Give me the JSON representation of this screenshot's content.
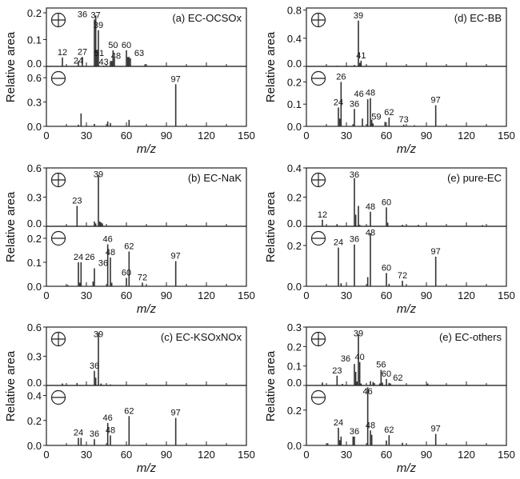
{
  "chart_data": [
    {
      "type": "bar",
      "title": "(a) EC-OCSOx",
      "xlabel": "m/z",
      "ylabel": "Relative area",
      "xlim": [
        0,
        150
      ],
      "xticks": [
        0,
        30,
        60,
        90,
        120,
        150
      ],
      "positive": {
        "sign": "+",
        "ylim": [
          0,
          0.218
        ],
        "yticks": [
          "0.0",
          "0.1",
          "0.2"
        ],
        "peaks": [
          [
            12,
            0.033
          ],
          [
            24,
            0.02
          ],
          [
            27,
            0.035
          ],
          [
            36,
            0.175
          ],
          [
            37,
            0.19
          ],
          [
            38,
            0.06
          ],
          [
            39,
            0.135
          ],
          [
            43,
            0.003
          ],
          [
            48,
            0.02
          ],
          [
            49,
            0.02
          ],
          [
            50,
            0.06
          ],
          [
            51,
            0.03
          ],
          [
            60,
            0.06
          ],
          [
            61,
            0.035
          ],
          [
            62,
            0.035
          ],
          [
            63,
            0.03
          ],
          [
            74,
            0.008
          ]
        ],
        "labels": [
          12,
          24,
          27,
          36,
          37,
          39,
          43,
          48,
          50,
          51,
          60,
          63
        ]
      },
      "negative": {
        "sign": "-",
        "ylim": [
          0,
          0.74
        ],
        "yticks": [
          "0.0",
          "0.3",
          "0.6"
        ],
        "peaks": [
          [
            24,
            0.02
          ],
          [
            26,
            0.16
          ],
          [
            36,
            0.03
          ],
          [
            46,
            0.06
          ],
          [
            48,
            0.04
          ],
          [
            62,
            0.08
          ],
          [
            97,
            0.52
          ]
        ],
        "labels": [
          97
        ]
      }
    },
    {
      "type": "bar",
      "title": "(b) EC-NaK",
      "xlabel": "m/z",
      "ylabel": "Relative area",
      "xlim": [
        0,
        150
      ],
      "xticks": [
        0,
        30,
        60,
        90,
        120,
        150
      ],
      "positive": {
        "sign": "+",
        "ylim": [
          0,
          0.6
        ],
        "yticks": [
          "0.0",
          "0.3",
          "0.6"
        ],
        "peaks": [
          [
            23,
            0.21
          ],
          [
            36,
            0.05
          ],
          [
            37,
            0.03
          ],
          [
            39,
            0.53
          ],
          [
            40,
            0.05
          ],
          [
            41,
            0.04
          ],
          [
            42,
            0.03
          ]
        ],
        "labels": [
          23,
          39
        ]
      },
      "negative": {
        "sign": "-",
        "ylim": [
          0,
          0.25
        ],
        "yticks": [
          "0.0",
          "0.1",
          "0.2"
        ],
        "peaks": [
          [
            16,
            0.005
          ],
          [
            24,
            0.1
          ],
          [
            25,
            0.015
          ],
          [
            26,
            0.1
          ],
          [
            35,
            0.02
          ],
          [
            36,
            0.075
          ],
          [
            46,
            0.175
          ],
          [
            48,
            0.12
          ],
          [
            49,
            0.015
          ],
          [
            60,
            0.035
          ],
          [
            62,
            0.145
          ],
          [
            72,
            0.015
          ],
          [
            97,
            0.105
          ]
        ],
        "labels": [
          24,
          26,
          36,
          46,
          48,
          60,
          62,
          72,
          97
        ]
      }
    },
    {
      "type": "bar",
      "title": "(c) EC-KSOxNOx",
      "xlabel": "m/z",
      "ylabel": "Relative area",
      "xlim": [
        0,
        150
      ],
      "xticks": [
        0,
        30,
        60,
        90,
        120,
        150
      ],
      "positive": {
        "sign": "+",
        "ylim": [
          0,
          0.6
        ],
        "yticks": [
          "0.0",
          "0.3",
          "0.6"
        ],
        "peaks": [
          [
            12,
            0.02
          ],
          [
            23,
            0.025
          ],
          [
            36,
            0.15
          ],
          [
            37,
            0.08
          ],
          [
            39,
            0.54
          ],
          [
            41,
            0.02
          ],
          [
            48,
            0.01
          ]
        ],
        "labels": [
          36,
          39
        ]
      },
      "negative": {
        "sign": "-",
        "ylim": [
          0,
          0.48
        ],
        "yticks": [
          "0.0",
          "0.2",
          "0.4"
        ],
        "peaks": [
          [
            24,
            0.06
          ],
          [
            26,
            0.06
          ],
          [
            36,
            0.05
          ],
          [
            46,
            0.18
          ],
          [
            48,
            0.08
          ],
          [
            62,
            0.235
          ],
          [
            72,
            0.005
          ],
          [
            97,
            0.22
          ]
        ],
        "labels": [
          24,
          36,
          46,
          48,
          62,
          97
        ]
      }
    },
    {
      "type": "bar",
      "title": "(d) EC-BB",
      "xlabel": "m/z",
      "ylabel": "Relative area",
      "xlim": [
        0,
        150
      ],
      "xticks": [
        0,
        30,
        60,
        90,
        120,
        150
      ],
      "positive": {
        "sign": "+",
        "ylim": [
          0,
          0.83
        ],
        "yticks": [
          "0.0",
          "0.4",
          "0.8"
        ],
        "peaks": [
          [
            23,
            0.01
          ],
          [
            36,
            0.02
          ],
          [
            39,
            0.65
          ],
          [
            40,
            0.05
          ],
          [
            41,
            0.08
          ]
        ],
        "labels": [
          39,
          41
        ]
      },
      "negative": {
        "sign": "-",
        "ylim": [
          0,
          0.27
        ],
        "yticks": [
          "0.0",
          "0.1",
          "0.2"
        ],
        "peaks": [
          [
            24,
            0.085
          ],
          [
            25,
            0.035
          ],
          [
            26,
            0.2
          ],
          [
            35,
            0.01
          ],
          [
            36,
            0.078
          ],
          [
            42,
            0.035
          ],
          [
            46,
            0.122
          ],
          [
            48,
            0.127
          ],
          [
            49,
            0.03
          ],
          [
            50,
            0.013
          ],
          [
            59,
            0.02
          ],
          [
            62,
            0.04
          ],
          [
            73,
            0.008
          ],
          [
            81,
            0.005
          ],
          [
            97,
            0.095
          ]
        ],
        "labels": [
          24,
          26,
          36,
          46,
          48,
          59,
          62,
          73,
          97
        ]
      }
    },
    {
      "type": "bar",
      "title": "(e) pure-EC",
      "xlabel": "m/z",
      "ylabel": "Relative area",
      "xlim": [
        0,
        150
      ],
      "xticks": [
        0,
        30,
        60,
        90,
        120,
        150
      ],
      "positive": {
        "sign": "+",
        "ylim": [
          0,
          0.4
        ],
        "yticks": [
          "0.0",
          "0.2",
          "0.4"
        ],
        "peaks": [
          [
            12,
            0.045
          ],
          [
            23,
            0.015
          ],
          [
            36,
            0.33
          ],
          [
            37,
            0.08
          ],
          [
            39,
            0.14
          ],
          [
            40,
            0.01
          ],
          [
            48,
            0.1
          ],
          [
            60,
            0.13
          ],
          [
            61,
            0.025
          ],
          [
            72,
            0.01
          ],
          [
            84,
            0.01
          ],
          [
            132,
            0.008
          ]
        ],
        "labels": [
          12,
          36,
          48,
          60
        ]
      },
      "negative": {
        "sign": "-",
        "ylim": [
          0,
          0.294
        ],
        "yticks": [
          "0.0",
          "0.2"
        ],
        "peaks": [
          [
            24,
            0.19
          ],
          [
            26,
            0.015
          ],
          [
            36,
            0.205
          ],
          [
            46,
            0.045
          ],
          [
            48,
            0.26
          ],
          [
            60,
            0.065
          ],
          [
            62,
            0.012
          ],
          [
            72,
            0.027
          ],
          [
            97,
            0.145
          ]
        ],
        "labels": [
          24,
          36,
          48,
          60,
          72,
          97
        ]
      }
    },
    {
      "type": "bar",
      "title": "(e) EC-others",
      "xlabel": "m/z",
      "ylabel": "Relative area",
      "xlim": [
        0,
        150
      ],
      "xticks": [
        0,
        30,
        60,
        90,
        120,
        150
      ],
      "positive": {
        "sign": "+",
        "ylim": [
          0,
          0.3
        ],
        "yticks": [
          "0.0",
          "0.1",
          "0.2",
          "0.3"
        ],
        "peaks": [
          [
            12,
            0.015
          ],
          [
            23,
            0.05
          ],
          [
            27,
            0.008
          ],
          [
            36,
            0.11
          ],
          [
            37,
            0.07
          ],
          [
            38,
            0.02
          ],
          [
            39,
            0.265
          ],
          [
            40,
            0.12
          ],
          [
            41,
            0.01
          ],
          [
            48,
            0.022
          ],
          [
            50,
            0.018
          ],
          [
            51,
            0.012
          ],
          [
            55,
            0.01
          ],
          [
            56,
            0.08
          ],
          [
            57,
            0.015
          ],
          [
            60,
            0.033
          ],
          [
            62,
            0.013
          ],
          [
            63,
            0.01
          ],
          [
            91,
            0.01
          ]
        ],
        "labels": [
          23,
          36,
          39,
          40,
          56,
          60,
          62
        ]
      },
      "negative": {
        "sign": "-",
        "ylim": [
          0,
          0.34
        ],
        "yticks": [
          "0.0",
          "0.2"
        ],
        "peaks": [
          [
            16,
            0.012
          ],
          [
            24,
            0.1
          ],
          [
            25,
            0.03
          ],
          [
            26,
            0.05
          ],
          [
            35,
            0.05
          ],
          [
            36,
            0.05
          ],
          [
            46,
            0.33
          ],
          [
            48,
            0.085
          ],
          [
            49,
            0.06
          ],
          [
            60,
            0.028
          ],
          [
            62,
            0.058
          ],
          [
            72,
            0.015
          ],
          [
            97,
            0.065
          ]
        ],
        "labels": [
          24,
          36,
          46,
          48,
          62,
          97
        ]
      }
    }
  ]
}
